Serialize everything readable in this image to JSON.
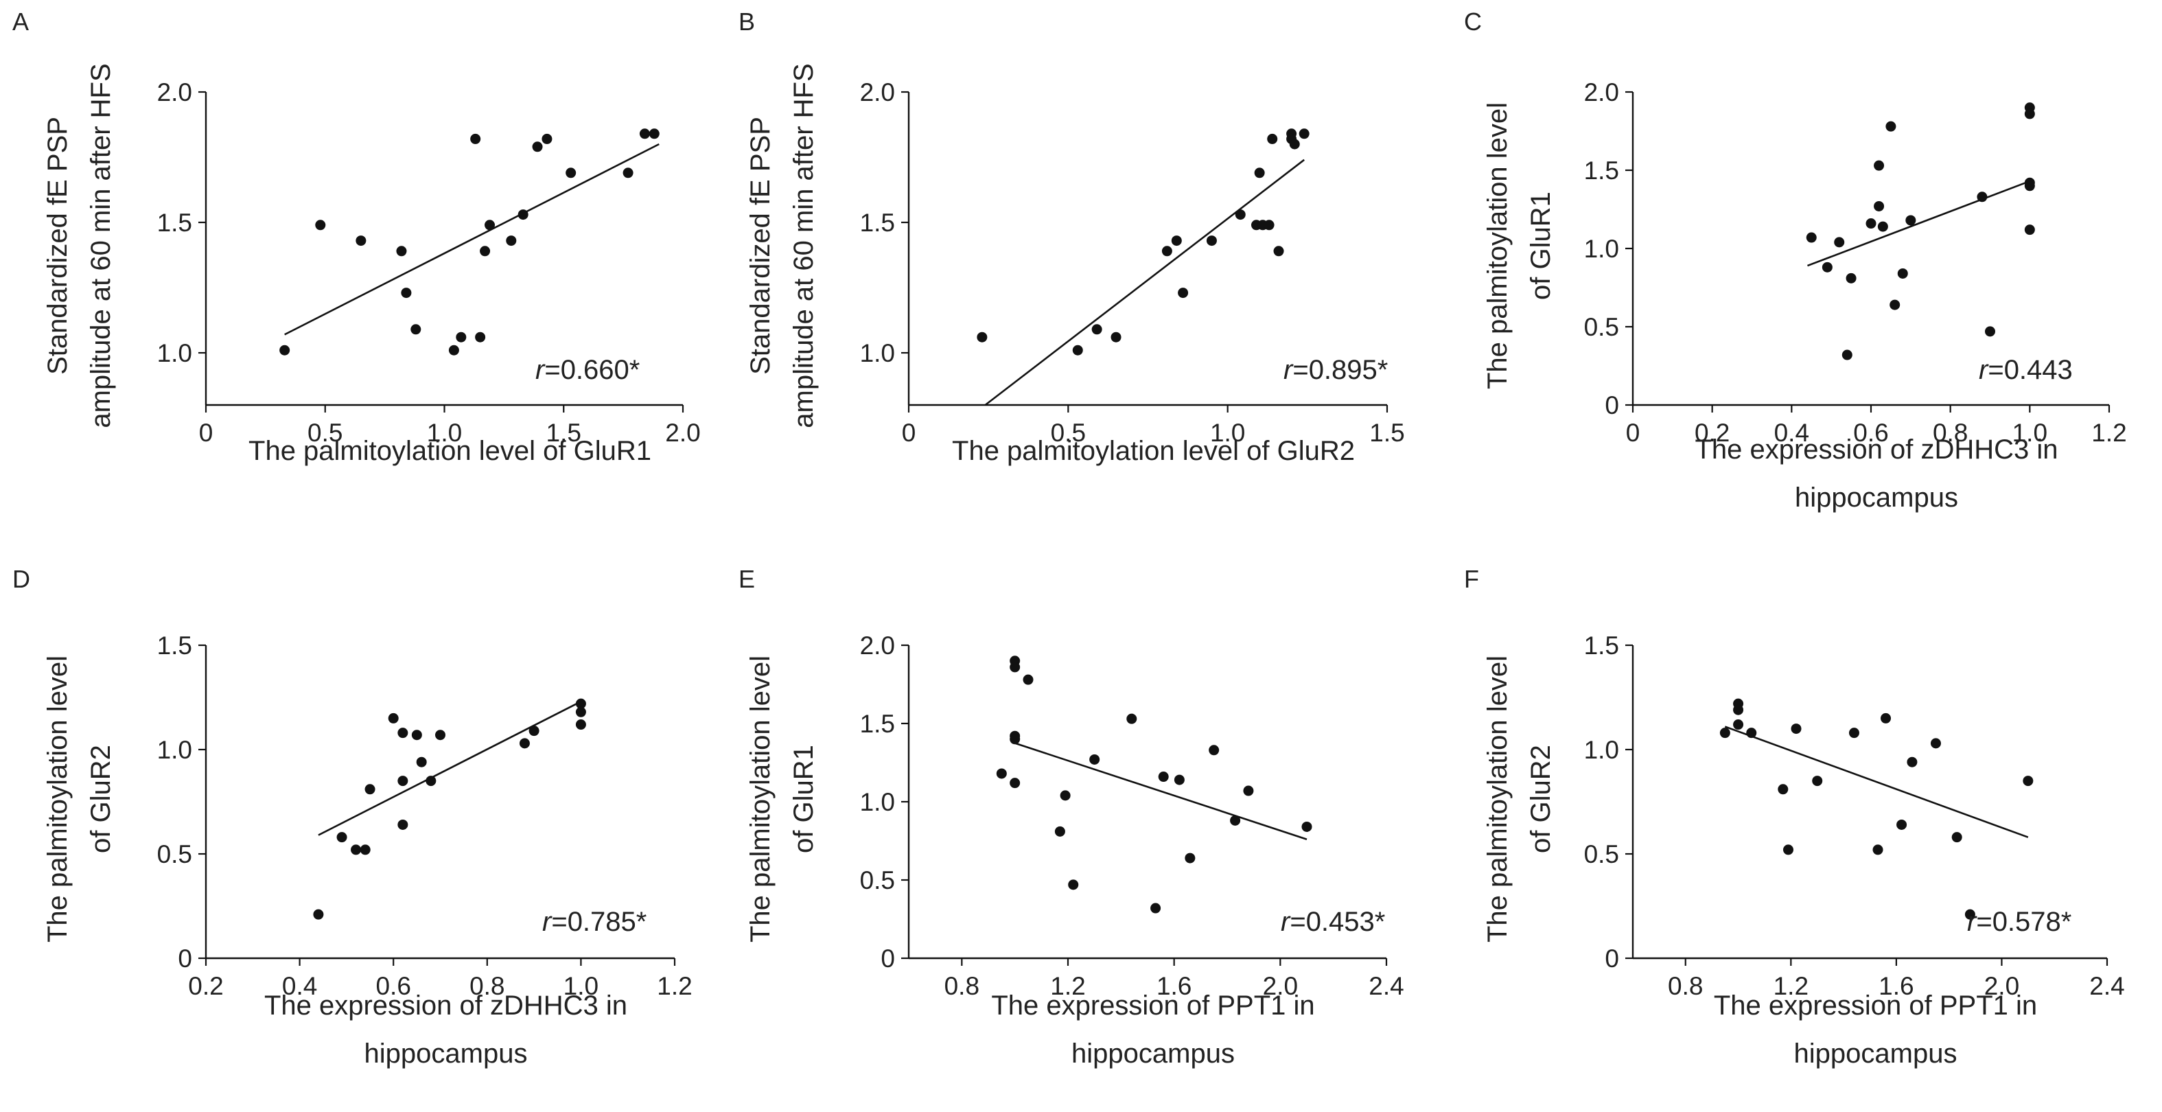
{
  "chart_data": [
    {
      "panel": "A",
      "type": "scatter",
      "xlabel": [
        "The palmitoylation level of GluR1"
      ],
      "ylabel": [
        "Standardized fE PSP",
        "amplitude at 60 min after HFS"
      ],
      "xlim": [
        0,
        2.0
      ],
      "ylim": [
        0.8,
        2.0
      ],
      "xticks": [
        0,
        0.5,
        1.0,
        1.5,
        2.0
      ],
      "xtick_labels": [
        "0",
        "0.5",
        "1.0",
        "1.5",
        "2.0"
      ],
      "yticks": [
        1.0,
        1.5,
        2.0
      ],
      "ytick_labels": [
        "1.0",
        "1.5",
        "2.0"
      ],
      "points": [
        [
          0.33,
          1.01
        ],
        [
          0.48,
          1.49
        ],
        [
          0.65,
          1.43
        ],
        [
          0.82,
          1.39
        ],
        [
          0.84,
          1.23
        ],
        [
          0.88,
          1.09
        ],
        [
          1.04,
          1.01
        ],
        [
          1.07,
          1.06
        ],
        [
          1.13,
          1.82
        ],
        [
          1.15,
          1.06
        ],
        [
          1.17,
          1.39
        ],
        [
          1.19,
          1.49
        ],
        [
          1.28,
          1.43
        ],
        [
          1.33,
          1.53
        ],
        [
          1.39,
          1.79
        ],
        [
          1.43,
          1.82
        ],
        [
          1.53,
          1.69
        ],
        [
          1.77,
          1.69
        ],
        [
          1.84,
          1.84
        ],
        [
          1.88,
          1.84
        ]
      ],
      "fit": [
        [
          0.33,
          1.07
        ],
        [
          1.9,
          1.8
        ]
      ],
      "annotation": {
        "r": "r",
        "value": "=0.660*"
      }
    },
    {
      "panel": "B",
      "type": "scatter",
      "xlabel": [
        "The palmitoylation level of GluR2"
      ],
      "ylabel": [
        "Standardized fE PSP",
        "amplitude at 60 min after HFS"
      ],
      "xlim": [
        0,
        1.5
      ],
      "ylim": [
        0.8,
        2.0
      ],
      "xticks": [
        0,
        0.5,
        1.0,
        1.5
      ],
      "xtick_labels": [
        "0",
        "0.5",
        "1.0",
        "1.5"
      ],
      "yticks": [
        1.0,
        1.5,
        2.0
      ],
      "ytick_labels": [
        "1.0",
        "1.5",
        "2.0"
      ],
      "points": [
        [
          0.23,
          1.06
        ],
        [
          0.53,
          1.01
        ],
        [
          0.59,
          1.09
        ],
        [
          0.65,
          1.06
        ],
        [
          0.81,
          1.39
        ],
        [
          0.84,
          1.43
        ],
        [
          0.86,
          1.23
        ],
        [
          0.95,
          1.43
        ],
        [
          1.04,
          1.53
        ],
        [
          1.09,
          1.49
        ],
        [
          1.1,
          1.69
        ],
        [
          1.11,
          1.49
        ],
        [
          1.13,
          1.49
        ],
        [
          1.14,
          1.82
        ],
        [
          1.16,
          1.39
        ],
        [
          1.2,
          1.84
        ],
        [
          1.2,
          1.82
        ],
        [
          1.21,
          1.8
        ],
        [
          1.24,
          1.84
        ]
      ],
      "fit": [
        [
          0.24,
          0.8
        ],
        [
          1.24,
          1.74
        ]
      ],
      "annotation": {
        "r": "r",
        "value": "=0.895*"
      }
    },
    {
      "panel": "C",
      "type": "scatter",
      "xlabel": [
        "The expression of zDHHC3 in",
        "hippocampus"
      ],
      "ylabel": [
        "The palmitoylation level",
        "of GluR1"
      ],
      "xlim": [
        0,
        1.2
      ],
      "ylim": [
        0,
        2.0
      ],
      "xticks": [
        0,
        0.2,
        0.4,
        0.6,
        0.8,
        1.0,
        1.2
      ],
      "xtick_labels": [
        "0",
        "0.2",
        "0.4",
        "0.6",
        "0.8",
        "1.0",
        "1.2"
      ],
      "yticks": [
        0,
        0.5,
        1.0,
        1.5,
        2.0
      ],
      "ytick_labels": [
        "0",
        "0.5",
        "1.0",
        "1.5",
        "2.0"
      ],
      "points": [
        [
          0.45,
          1.07
        ],
        [
          0.49,
          0.88
        ],
        [
          0.52,
          1.04
        ],
        [
          0.54,
          0.32
        ],
        [
          0.55,
          0.81
        ],
        [
          0.6,
          1.16
        ],
        [
          0.62,
          1.53
        ],
        [
          0.62,
          1.27
        ],
        [
          0.63,
          1.14
        ],
        [
          0.65,
          1.78
        ],
        [
          0.66,
          0.64
        ],
        [
          0.68,
          0.84
        ],
        [
          0.7,
          1.18
        ],
        [
          0.88,
          1.33
        ],
        [
          0.9,
          0.47
        ],
        [
          1.0,
          1.9
        ],
        [
          1.0,
          1.86
        ],
        [
          1.0,
          1.42
        ],
        [
          1.0,
          1.4
        ],
        [
          1.0,
          1.12
        ]
      ],
      "fit": [
        [
          0.44,
          0.89
        ],
        [
          1.0,
          1.43
        ]
      ],
      "annotation": {
        "r": "r",
        "value": "=0.443"
      }
    },
    {
      "panel": "D",
      "type": "scatter",
      "xlabel": [
        "The expression of zDHHC3 in",
        "hippocampus"
      ],
      "ylabel": [
        "The palmitoylation level",
        "of GluR2"
      ],
      "xlim": [
        0.2,
        1.2
      ],
      "ylim": [
        0,
        1.5
      ],
      "xticks": [
        0.2,
        0.4,
        0.6,
        0.8,
        1.0,
        1.2
      ],
      "xtick_labels": [
        "0.2",
        "0.4",
        "0.6",
        "0.8",
        "1.0",
        "1.2"
      ],
      "yticks": [
        0,
        0.5,
        1.0,
        1.5
      ],
      "ytick_labels": [
        "0",
        "0.5",
        "1.0",
        "1.5"
      ],
      "points": [
        [
          0.44,
          0.21
        ],
        [
          0.49,
          0.58
        ],
        [
          0.52,
          0.52
        ],
        [
          0.54,
          0.52
        ],
        [
          0.55,
          0.81
        ],
        [
          0.6,
          1.15
        ],
        [
          0.62,
          1.08
        ],
        [
          0.62,
          0.85
        ],
        [
          0.62,
          0.64
        ],
        [
          0.65,
          1.07
        ],
        [
          0.66,
          0.94
        ],
        [
          0.68,
          0.85
        ],
        [
          0.7,
          1.07
        ],
        [
          0.88,
          1.03
        ],
        [
          0.9,
          1.09
        ],
        [
          1.0,
          1.22
        ],
        [
          1.0,
          1.18
        ],
        [
          1.0,
          1.12
        ]
      ],
      "fit": [
        [
          0.44,
          0.59
        ],
        [
          1.0,
          1.23
        ]
      ],
      "annotation": {
        "r": "r",
        "value": "=0.785*"
      }
    },
    {
      "panel": "E",
      "type": "scatter",
      "xlabel": [
        "The expression of PPT1 in",
        "hippocampus"
      ],
      "ylabel": [
        "The palmitoylation level",
        "of GluR1"
      ],
      "xlim": [
        0.6,
        2.4
      ],
      "ylim": [
        0,
        2.0
      ],
      "xticks": [
        0.8,
        1.2,
        1.6,
        2.0,
        2.4
      ],
      "xtick_labels": [
        "0.8",
        "1.2",
        "1.6",
        "2.0",
        "2.4"
      ],
      "yticks": [
        0,
        0.5,
        1.0,
        1.5,
        2.0
      ],
      "ytick_labels": [
        "0",
        "0.5",
        "1.0",
        "1.5",
        "2.0"
      ],
      "points": [
        [
          0.95,
          1.18
        ],
        [
          1.0,
          1.9
        ],
        [
          1.0,
          1.86
        ],
        [
          1.0,
          1.42
        ],
        [
          1.0,
          1.4
        ],
        [
          1.0,
          1.12
        ],
        [
          1.05,
          1.78
        ],
        [
          1.17,
          0.81
        ],
        [
          1.19,
          1.04
        ],
        [
          1.22,
          0.47
        ],
        [
          1.3,
          1.27
        ],
        [
          1.44,
          1.53
        ],
        [
          1.53,
          0.32
        ],
        [
          1.56,
          1.16
        ],
        [
          1.62,
          1.14
        ],
        [
          1.66,
          0.64
        ],
        [
          1.75,
          1.33
        ],
        [
          1.83,
          0.88
        ],
        [
          1.88,
          1.07
        ],
        [
          2.1,
          0.84
        ]
      ],
      "fit": [
        [
          0.99,
          1.38
        ],
        [
          2.1,
          0.76
        ]
      ],
      "annotation": {
        "r": "r",
        "value": "=0.453*"
      }
    },
    {
      "panel": "F",
      "type": "scatter",
      "xlabel": [
        "The expression of PPT1 in",
        "hippocampus"
      ],
      "ylabel": [
        "The palmitoylation level",
        "of GluR2"
      ],
      "xlim": [
        0.6,
        2.4
      ],
      "ylim": [
        0,
        1.5
      ],
      "xticks": [
        0.8,
        1.2,
        1.6,
        2.0,
        2.4
      ],
      "xtick_labels": [
        "0.8",
        "1.2",
        "1.6",
        "2.0",
        "2.4"
      ],
      "yticks": [
        0,
        0.5,
        1.0,
        1.5
      ],
      "ytick_labels": [
        "0",
        "0.5",
        "1.0",
        "1.5"
      ],
      "points": [
        [
          0.95,
          1.08
        ],
        [
          1.0,
          1.22
        ],
        [
          1.0,
          1.19
        ],
        [
          1.0,
          1.12
        ],
        [
          1.05,
          1.08
        ],
        [
          1.17,
          0.81
        ],
        [
          1.19,
          0.52
        ],
        [
          1.22,
          1.1
        ],
        [
          1.3,
          0.85
        ],
        [
          1.44,
          1.08
        ],
        [
          1.53,
          0.52
        ],
        [
          1.56,
          1.15
        ],
        [
          1.62,
          0.64
        ],
        [
          1.66,
          0.94
        ],
        [
          1.75,
          1.03
        ],
        [
          1.83,
          0.58
        ],
        [
          1.88,
          0.21
        ],
        [
          2.1,
          0.85
        ]
      ],
      "fit": [
        [
          0.95,
          1.11
        ],
        [
          2.1,
          0.58
        ]
      ],
      "annotation": {
        "r": "r",
        "value": "=0.578*"
      }
    }
  ]
}
